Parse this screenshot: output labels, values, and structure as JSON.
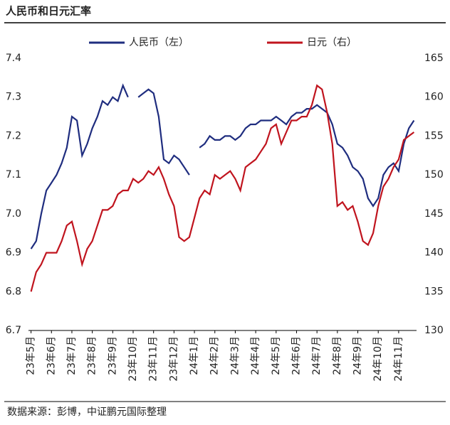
{
  "chart_data": {
    "type": "line",
    "title": "人民币和日元汇率",
    "source": "数据来源：彭博，中证鹏元国际整理",
    "categories": [
      "23年5月",
      null,
      null,
      null,
      "23年6月",
      null,
      null,
      null,
      "23年7月",
      null,
      null,
      null,
      "23年8月",
      null,
      null,
      null,
      "23年9月",
      null,
      null,
      null,
      "23年10月",
      null,
      null,
      null,
      "23年11月",
      null,
      null,
      null,
      "23年12月",
      null,
      null,
      null,
      "24年1月",
      null,
      null,
      null,
      "24年2月",
      null,
      null,
      null,
      "24年3月",
      null,
      null,
      null,
      "24年4月",
      null,
      null,
      null,
      "24年5月",
      null,
      null,
      null,
      "24年6月",
      null,
      null,
      null,
      "24年7月",
      null,
      null,
      null,
      "24年8月",
      null,
      null,
      null,
      "24年9月",
      null,
      null,
      null,
      "24年10月",
      null,
      null,
      null,
      "24年11月",
      null,
      null,
      null
    ],
    "series": [
      {
        "name": "人民币（左）",
        "color": "#1f2d7f",
        "axis": "y",
        "values": [
          6.91,
          6.93,
          7.0,
          7.06,
          7.08,
          7.1,
          7.13,
          7.17,
          7.25,
          7.24,
          7.15,
          7.18,
          7.22,
          7.25,
          7.29,
          7.28,
          7.3,
          7.29,
          7.33,
          7.3,
          null,
          7.3,
          7.31,
          7.32,
          7.31,
          7.25,
          7.14,
          7.13,
          7.15,
          7.14,
          7.12,
          7.1,
          null,
          7.17,
          7.18,
          7.2,
          7.19,
          7.19,
          7.2,
          7.2,
          7.19,
          7.2,
          7.22,
          7.23,
          7.23,
          7.24,
          7.24,
          7.24,
          7.25,
          7.24,
          7.23,
          7.25,
          7.26,
          7.26,
          7.27,
          7.27,
          7.28,
          7.27,
          7.26,
          7.23,
          7.18,
          7.17,
          7.15,
          7.12,
          7.11,
          7.09,
          7.04,
          7.02,
          7.04,
          7.1,
          7.12,
          7.13,
          7.11,
          7.18,
          7.22,
          7.24
        ]
      },
      {
        "name": "日元（右）",
        "color": "#c0141e",
        "axis": "y2",
        "values": [
          135,
          137.5,
          138.5,
          140,
          140,
          140,
          141.5,
          143.5,
          144,
          141.5,
          138.5,
          140.5,
          141.5,
          143.5,
          145.5,
          145.5,
          146,
          147.5,
          148,
          148,
          149.5,
          149,
          149.5,
          150.5,
          150,
          151,
          149.5,
          147.5,
          146,
          142,
          141.5,
          142,
          144.5,
          147,
          148,
          147.5,
          150,
          149.5,
          150,
          150.5,
          149.5,
          148,
          151,
          151.5,
          152,
          153,
          154,
          156,
          156.5,
          154,
          155.5,
          157,
          157,
          157.5,
          157.5,
          159,
          161.5,
          161,
          158,
          154,
          146,
          146.5,
          145.5,
          146,
          144,
          141.5,
          141,
          142.5,
          146,
          148.5,
          149.5,
          151,
          152,
          154.5,
          155,
          155.5
        ]
      }
    ],
    "ylim": [
      6.7,
      7.4
    ],
    "yticks": [
      {
        "value": 6.7,
        "label": "6.7"
      },
      {
        "value": 6.8,
        "label": "6.8"
      },
      {
        "value": 6.9,
        "label": "6.9"
      },
      {
        "value": 7,
        "label": "7.0"
      },
      {
        "value": 7.1,
        "label": "7.1"
      },
      {
        "value": 7.2,
        "label": "7.2"
      },
      {
        "value": 7.3,
        "label": "7.3"
      },
      {
        "value": 7.4,
        "label": "7.4"
      }
    ],
    "y2lim": [
      130,
      165
    ],
    "y2ticks": [
      130,
      135,
      140,
      145,
      150,
      155,
      160,
      165
    ],
    "legend": "top"
  }
}
